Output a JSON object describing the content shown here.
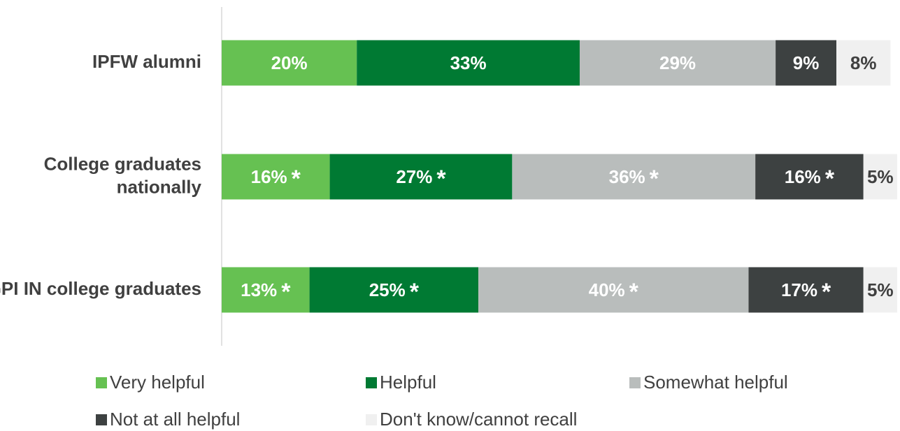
{
  "chart_data": {
    "type": "stacked_bar_horizontal",
    "categories": [
      [
        "IPFW alumni"
      ],
      [
        "College graduates",
        "nationally"
      ],
      [
        "GPI IN college graduates"
      ]
    ],
    "series": [
      {
        "name": "Very helpful",
        "color": "#66c152",
        "label_color": "#ffffff",
        "values": [
          20,
          16,
          13
        ],
        "value_labels": [
          "20%",
          "16%",
          "13%"
        ],
        "markers": [
          null,
          "*",
          "*"
        ]
      },
      {
        "name": "Helpful",
        "color": "#007a33",
        "label_color": "#ffffff",
        "values": [
          33,
          27,
          25
        ],
        "value_labels": [
          "33%",
          "27%",
          "25%"
        ],
        "markers": [
          null,
          "*",
          "*"
        ]
      },
      {
        "name": "Somewhat helpful",
        "color": "#b9bdbc",
        "label_color": "#ffffff",
        "values": [
          29,
          36,
          40
        ],
        "value_labels": [
          "29%",
          "36%",
          "40%"
        ],
        "markers": [
          null,
          "*",
          "*"
        ]
      },
      {
        "name": "Not at all helpful",
        "color": "#3d4141",
        "label_color": "#ffffff",
        "values": [
          9,
          16,
          17
        ],
        "value_labels": [
          "9%",
          "16%",
          "17%"
        ],
        "markers": [
          null,
          "*",
          "*"
        ]
      },
      {
        "name": "Don't know/cannot recall",
        "color": "#f0f0f0",
        "label_color": "#404040",
        "values": [
          8,
          5,
          5
        ],
        "value_labels": [
          "8%",
          "5%",
          "5%"
        ],
        "markers": [
          null,
          null,
          null
        ]
      }
    ]
  }
}
